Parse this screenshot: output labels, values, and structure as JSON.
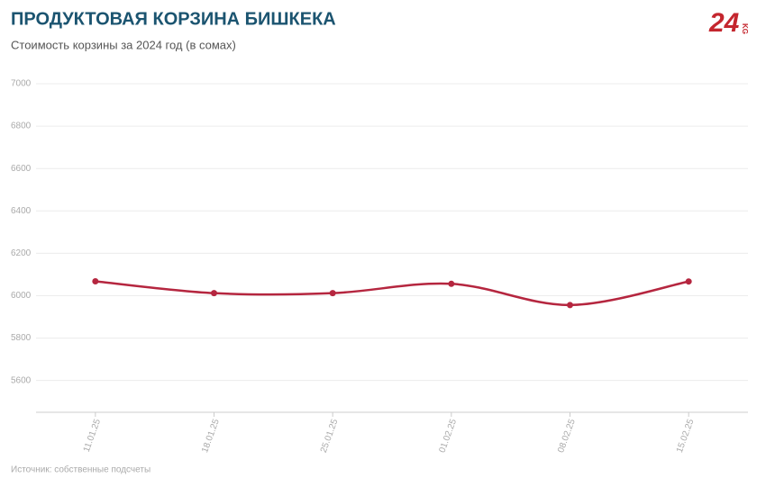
{
  "chart_data": {
    "type": "line",
    "title": "ПРОДУКТОВАЯ КОРЗИНА БИШКЕКА",
    "subtitle": "Стоимость корзины за 2024 год (в сомах)",
    "source": "Источник: собственные подсчеты",
    "logo": {
      "main": "24",
      "sub": "KG"
    },
    "categories": [
      "11.01.25",
      "18.01.25",
      "25.01.25",
      "01.02.25",
      "08.02.25",
      "15.02.25"
    ],
    "series": [
      {
        "name": "Стоимость корзины",
        "color": "#b5263f",
        "values": [
          6068,
          6012,
          6012,
          6056,
          5956,
          6067
        ]
      }
    ],
    "ylim": [
      5450,
      7000
    ],
    "yticks": [
      5600,
      5800,
      6000,
      6200,
      6400,
      6600,
      6800,
      7000
    ],
    "grid": true
  }
}
